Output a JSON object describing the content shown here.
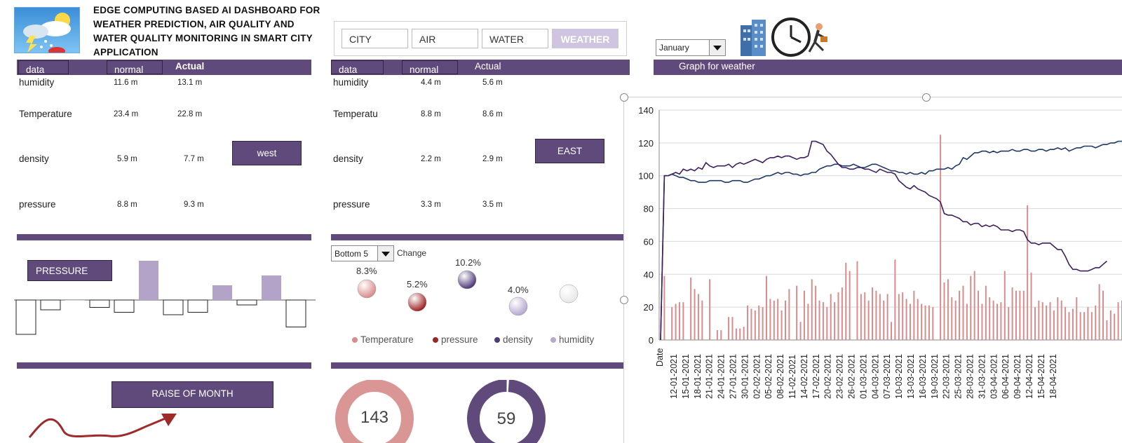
{
  "title": "EDGE COMPUTING BASED AI DASHBOARD FOR WEATHER PREDICTION, AIR QUALITY AND WATER QUALITY MONITORING IN SMART CITY APPLICATION",
  "logo_icon": "weather-icon",
  "nav": {
    "city": "CITY",
    "air": "AIR",
    "water": "WATER",
    "weather": "WEATHER",
    "active": "WEATHER"
  },
  "month_select": {
    "value": "January"
  },
  "header_icons": [
    "building-icon",
    "clock-icon",
    "runner-icon"
  ],
  "west": {
    "headers": {
      "data": "data",
      "normal": "normal",
      "actual": "Actual"
    },
    "rows": [
      {
        "label": "humidity",
        "normal": "11.6 m",
        "actual": "13.1 m"
      },
      {
        "label": "Temperature",
        "normal": "23.4 m",
        "actual": "22.8 m"
      },
      {
        "label": "density",
        "normal": "5.9 m",
        "actual": "7.7 m"
      },
      {
        "label": "pressure",
        "normal": "8.8 m",
        "actual": "9.3 m"
      }
    ],
    "button": "west"
  },
  "east": {
    "headers": {
      "data": "data",
      "normal": "normal",
      "actual": "Actual"
    },
    "rows": [
      {
        "label": "humidity",
        "normal": "4.4 m",
        "actual": "5.6 m"
      },
      {
        "label": "Temperatu",
        "normal": "8.8 m",
        "actual": "8.6 m"
      },
      {
        "label": "density",
        "normal": "2.2 m",
        "actual": "2.9 m"
      },
      {
        "label": "pressure",
        "normal": "3.3 m",
        "actual": "3.5 m"
      }
    ],
    "button": "EAST"
  },
  "pressure_chart": {
    "button": "PRESSURE",
    "values": [
      -14,
      -4,
      0,
      -3,
      -5,
      16,
      -6,
      -5,
      6,
      -2,
      10,
      -11
    ],
    "colors": {
      "negative": "#ffffff",
      "positive": "#b4a3c8",
      "stroke": "#222222"
    }
  },
  "bubble_panel": {
    "select": "Bottom 5",
    "change_label": "Change",
    "bubbles": [
      {
        "label": "8.3%",
        "color": "#d98c8c"
      },
      {
        "label": "5.2%",
        "color": "#9e2424"
      },
      {
        "label": "10.2%",
        "color": "#4f3a78"
      },
      {
        "label": "4.0%",
        "color": "#b7a8cf"
      },
      {
        "label": "",
        "color": "#e8e8e8"
      }
    ],
    "legend": [
      {
        "name": "Temperature",
        "color": "#d98c8c"
      },
      {
        "name": "pressure",
        "color": "#9e2424"
      },
      {
        "name": "density",
        "color": "#4f3a78"
      },
      {
        "name": "humidity",
        "color": "#b7a8cf"
      }
    ]
  },
  "raise_button": "RAISE OF MONTH",
  "donuts": [
    {
      "value": "143",
      "color": "#d99694"
    },
    {
      "value": "59",
      "color": "#604a7b"
    }
  ],
  "graph_header": "Graph for weather",
  "chart_data": {
    "type": "line",
    "title": "",
    "xlabel": "Date",
    "ylabel": "",
    "ylim": [
      0,
      140
    ],
    "yticks": [
      0,
      20,
      40,
      60,
      80,
      100,
      120,
      140
    ],
    "tick_labels": [
      "12-01-2021",
      "15-01-2021",
      "18-01-2021",
      "21-01-2021",
      "24-01-2021",
      "27-01-2021",
      "30-01-2021",
      "02-02-2021",
      "05-02-2021",
      "08-02-2021",
      "11-02-2021",
      "14-02-2021",
      "17-02-2021",
      "20-02-2021",
      "23-02-2021",
      "26-02-2021",
      "01-03-2021",
      "04-03-2021",
      "07-03-2021",
      "10-03-2021",
      "13-03-2021",
      "16-03-2021",
      "19-03-2021",
      "22-03-2021",
      "25-03-2021",
      "28-03-2021",
      "31-03-2021",
      "03-04-2021",
      "06-04-2021",
      "09-04-2021",
      "12-04-2021",
      "15-04-2021",
      "18-04-2021"
    ],
    "series": [
      {
        "kind": "line",
        "color": "#1f3864",
        "values": [
          0,
          100,
          100,
          101,
          100,
          99,
          99,
          98,
          97,
          97,
          96,
          96,
          96,
          97,
          97,
          97,
          97,
          96,
          96,
          97,
          97,
          97,
          96,
          96,
          97,
          98,
          98,
          99,
          100,
          100,
          101,
          102,
          101,
          102,
          102,
          101,
          101,
          100,
          101,
          101,
          102,
          102,
          104,
          105,
          106,
          106,
          107,
          107,
          106,
          106,
          106,
          107,
          106,
          105,
          105,
          106,
          107,
          107,
          106,
          105,
          104,
          103,
          103,
          102,
          102,
          101,
          102,
          101,
          101,
          102,
          101,
          103,
          103,
          104,
          104,
          104,
          105,
          104,
          106,
          107,
          111,
          110,
          112,
          114,
          114,
          115,
          115,
          114,
          115,
          114,
          115,
          115,
          115,
          116,
          115,
          115,
          116,
          116,
          115,
          115,
          116,
          116,
          115,
          116,
          116,
          117,
          116,
          117,
          115,
          116,
          117,
          117,
          118,
          118,
          118,
          117,
          118,
          119,
          119,
          120,
          120,
          121,
          121
        ]
      },
      {
        "kind": "line",
        "color": "#3c1f5f",
        "values": [
          0,
          100,
          100,
          101,
          102,
          101,
          104,
          103,
          104,
          103,
          105,
          104,
          108,
          106,
          105,
          106,
          106,
          106,
          107,
          105,
          107,
          108,
          107,
          108,
          109,
          110,
          109,
          108,
          110,
          111,
          111,
          112,
          111,
          112,
          112,
          111,
          110,
          111,
          111,
          112,
          121,
          121,
          120,
          119,
          115,
          113,
          110,
          107,
          105,
          105,
          104,
          104,
          105,
          105,
          104,
          104,
          103,
          102,
          104,
          103,
          102,
          102,
          101,
          97,
          95,
          93,
          92,
          94,
          92,
          91,
          90,
          88,
          87,
          86,
          84,
          77,
          76,
          76,
          75,
          74,
          72,
          72,
          70,
          71,
          71,
          69,
          70,
          69,
          70,
          69,
          67,
          67,
          67,
          66,
          67,
          67,
          66,
          61,
          59,
          59,
          58,
          59,
          59,
          59,
          57,
          55,
          55,
          51,
          46,
          43,
          43,
          42,
          42,
          42,
          43,
          44,
          44,
          46,
          48
        ]
      },
      {
        "kind": "bar",
        "color": "#d98c8c",
        "values": [
          0,
          39,
          0,
          20,
          22,
          23,
          23,
          0,
          38,
          31,
          28,
          24,
          0,
          37,
          0,
          6,
          6,
          0,
          14,
          14,
          7,
          7,
          8,
          21,
          19,
          18,
          21,
          20,
          39,
          25,
          24,
          25,
          18,
          24,
          31,
          0,
          33,
          11,
          30,
          22,
          37,
          33,
          24,
          23,
          20,
          28,
          23,
          29,
          32,
          47,
          42,
          0,
          48,
          28,
          29,
          24,
          32,
          30,
          28,
          24,
          28,
          11,
          49,
          28,
          29,
          25,
          22,
          30,
          25,
          22,
          21,
          21,
          20,
          0,
          125,
          35,
          37,
          26,
          24,
          30,
          33,
          22,
          39,
          42,
          30,
          22,
          33,
          26,
          24,
          22,
          23,
          42,
          20,
          32,
          30,
          30,
          30,
          82,
          41,
          20,
          24,
          23,
          21,
          23,
          18,
          26,
          24,
          20,
          17,
          19,
          26,
          17,
          17,
          20,
          17,
          21,
          34,
          30,
          12,
          18,
          16,
          23,
          24,
          31
        ]
      }
    ]
  }
}
